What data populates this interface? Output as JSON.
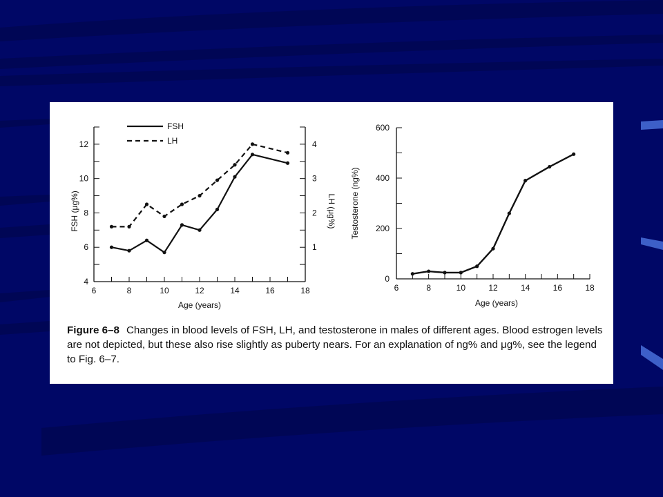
{
  "slide": {
    "background_color": "#000766",
    "stripe_color": "#000655",
    "accent_color": "#3d5fc8"
  },
  "caption": {
    "label": "Figure 6–8",
    "text": "Changes in blood levels of FSH, LH, and testosterone in males of different ages. Blood estrogen levels are not depicted, but these also rise slightly as puberty nears. For an explanation of ng% and μg%, see the legend to Fig. 6–7."
  },
  "chart_data": [
    {
      "type": "line",
      "xlabel": "Age (years)",
      "ylabel": "FSH (μg%)",
      "ylabel_right": "LH (μg%)",
      "xlim": [
        6,
        18
      ],
      "ylim": [
        4,
        13
      ],
      "ylim_right": [
        0,
        4.5
      ],
      "xticks": [
        6,
        8,
        10,
        12,
        14,
        16,
        18
      ],
      "yticks": [
        4,
        6,
        8,
        10,
        12
      ],
      "yticks_right": [
        1,
        2,
        3,
        4
      ],
      "legend_position": "top-left",
      "series": [
        {
          "name": "FSH",
          "axis": "left",
          "style": "solid",
          "x": [
            7,
            8,
            9,
            10,
            11,
            12,
            13,
            14,
            15,
            17
          ],
          "y": [
            6.0,
            5.8,
            6.4,
            5.7,
            7.3,
            7.0,
            8.2,
            10.1,
            11.4,
            10.9
          ]
        },
        {
          "name": "LH",
          "axis": "right",
          "style": "dashed",
          "x": [
            7,
            8,
            9,
            10,
            11,
            12,
            13,
            14,
            15,
            17
          ],
          "y": [
            1.6,
            1.6,
            2.25,
            1.9,
            2.25,
            2.5,
            2.95,
            3.4,
            4.0,
            3.75
          ]
        }
      ]
    },
    {
      "type": "line",
      "xlabel": "Age (years)",
      "ylabel": "Testosterone (ng%)",
      "xlim": [
        6,
        18
      ],
      "ylim": [
        0,
        600
      ],
      "xticks": [
        6,
        8,
        10,
        12,
        14,
        16,
        18
      ],
      "yticks": [
        0,
        200,
        400,
        600
      ],
      "series": [
        {
          "x": [
            7,
            8,
            9,
            10,
            11,
            12,
            13,
            14,
            15.5,
            17
          ],
          "y": [
            20,
            30,
            25,
            25,
            50,
            120,
            260,
            390,
            445,
            495
          ]
        }
      ]
    }
  ]
}
